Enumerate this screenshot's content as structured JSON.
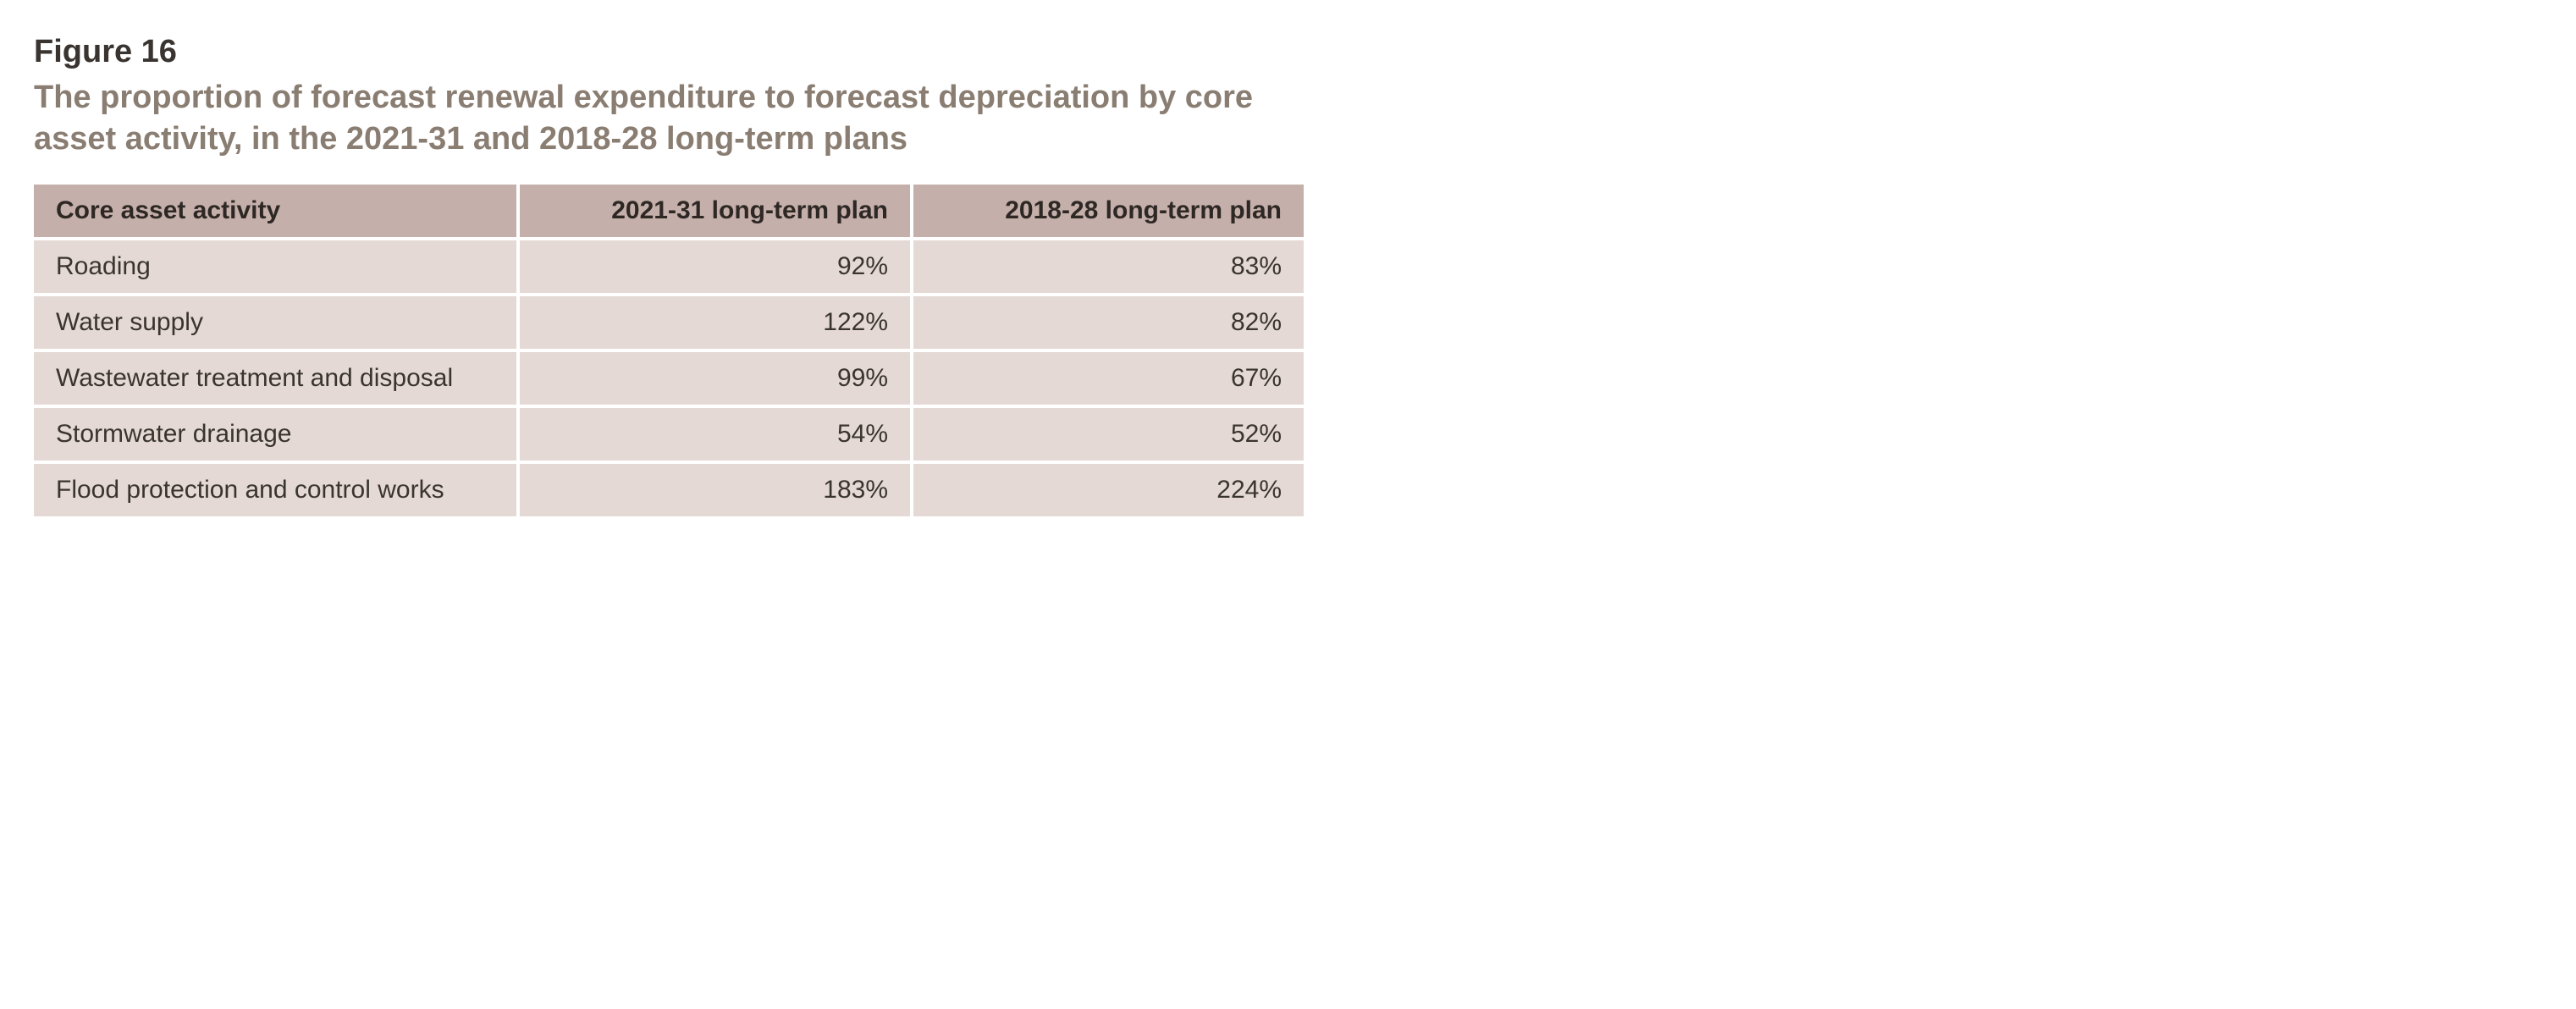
{
  "figure": {
    "label": "Figure 16",
    "title": "The proportion of forecast renewal expenditure to forecast depreciation by core asset activity, in the 2021-31 and 2018-28 long-term plans"
  },
  "table": {
    "columns": [
      "Core asset activity",
      "2021-31 long-term plan",
      "2018-28 long-term plan"
    ],
    "rows": [
      [
        "Roading",
        "92%",
        "83%"
      ],
      [
        "Water supply",
        "122%",
        "82%"
      ],
      [
        "Wastewater treatment and disposal",
        "99%",
        "67%"
      ],
      [
        "Stormwater drainage",
        "54%",
        "52%"
      ],
      [
        "Flood protection and control works",
        "183%",
        "224%"
      ]
    ],
    "header_bg": "#c5afaa",
    "row_bg": "#e4d9d4",
    "gap_color": "#ffffff",
    "text_color": "#3a3430",
    "title_color": "#8a7d72",
    "font_size_header": 30,
    "font_size_body": 30,
    "column_alignment": [
      "left",
      "right",
      "right"
    ]
  }
}
